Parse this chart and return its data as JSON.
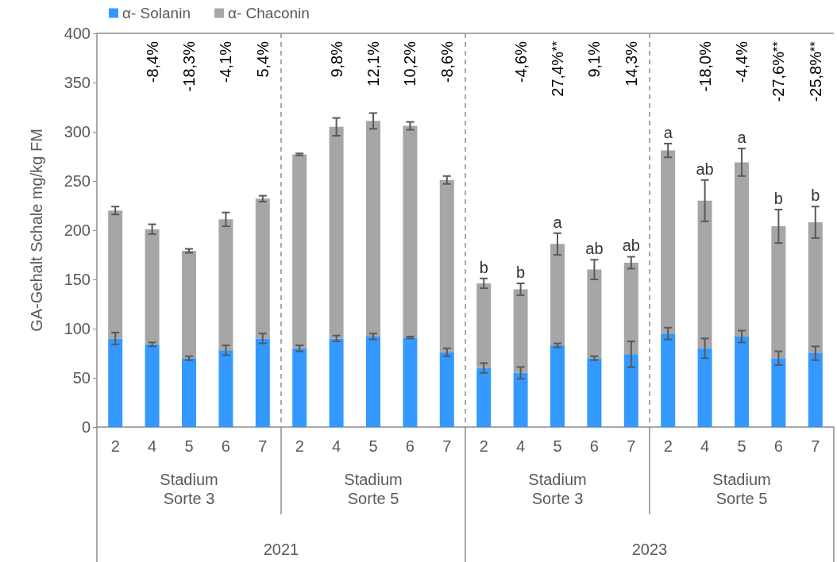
{
  "chart_data": {
    "type": "bar",
    "stacked": true,
    "ylabel": "GA-Gehalt Schale mg/kg FM",
    "ylim": [
      0,
      400
    ],
    "yticks": [
      0,
      50,
      100,
      150,
      200,
      250,
      300,
      350,
      400
    ],
    "grid": false,
    "legend": "top left",
    "categories": [
      "2",
      "4",
      "5",
      "6",
      "7",
      "2",
      "4",
      "5",
      "6",
      "7",
      "2",
      "4",
      "5",
      "6",
      "7",
      "2",
      "4",
      "5",
      "6",
      "7"
    ],
    "series": [
      {
        "name": "α- Solanin",
        "color": "#3399ff",
        "values": [
          90,
          84,
          70,
          78,
          90,
          80,
          90,
          92,
          91,
          76,
          60,
          55,
          83,
          70,
          74,
          95,
          80,
          92,
          70,
          75
        ],
        "errors": [
          6,
          2,
          2,
          5,
          5,
          3,
          3,
          3,
          1,
          4,
          5,
          6,
          2,
          2,
          13,
          6,
          10,
          6,
          7,
          7
        ]
      },
      {
        "name": "α- Chaconin",
        "color": "#a6a6a6",
        "values": [
          130,
          117,
          109,
          133,
          142,
          197,
          215,
          219,
          215,
          175,
          86,
          85,
          103,
          90,
          93,
          186,
          150,
          177,
          134,
          133
        ],
        "errors": [
          4,
          5,
          2,
          7,
          3,
          1,
          9,
          8,
          4,
          4,
          5,
          6,
          11,
          10,
          6,
          7,
          21,
          14,
          17,
          16
        ]
      }
    ],
    "annotations": [
      "Stadium\nSorte 3",
      "Stadium\nSorte 5",
      "Stadium\nSorte 3",
      "Stadium\nSorte 5",
      "2021",
      "2023",
      "-8,4%",
      "-18,3%",
      "-4,1%",
      "5,4%",
      "9,8%",
      "12,1%",
      "10,2%",
      "-8,6%",
      "-4,6%",
      "27,4%$^{**}$",
      "9,1%",
      "14,3%",
      "-18,0%",
      "-4,4%",
      "-27,6%$^{**}$",
      "-25,8%$^{**}$",
      "b",
      "b",
      "a",
      "ab",
      "ab",
      "a",
      "ab",
      "a",
      "b",
      "b"
    ]
  }
}
